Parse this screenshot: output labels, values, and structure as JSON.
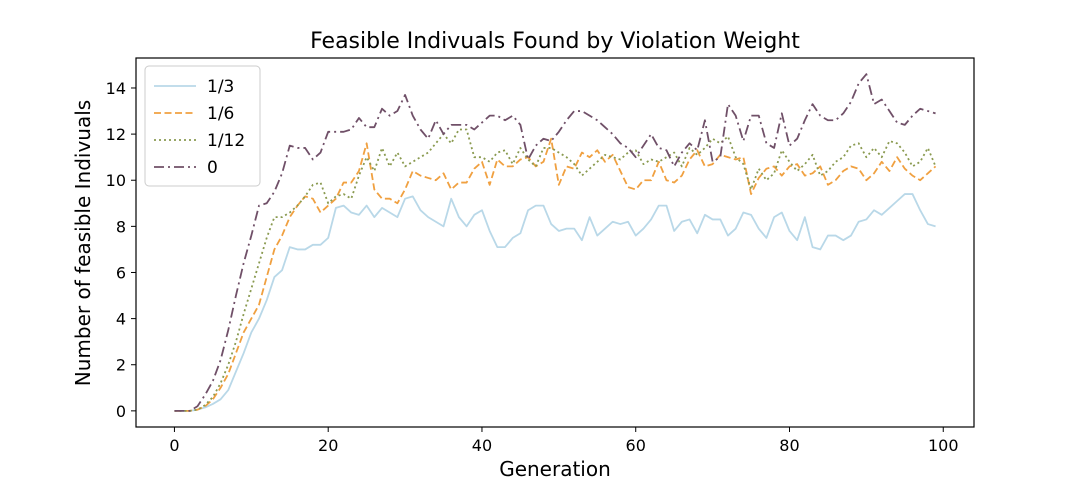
{
  "chart_data": {
    "type": "line",
    "title": "Feasible Indivuals Found by Violation Weight",
    "xlabel": "Generation",
    "ylabel": "Number of feasible Indivuals",
    "xlim": [
      -5,
      104
    ],
    "ylim": [
      -0.7,
      15.3
    ],
    "xticks": [
      0,
      20,
      40,
      60,
      80,
      100
    ],
    "yticks": [
      0,
      2,
      4,
      6,
      8,
      10,
      12,
      14
    ],
    "grid": false,
    "legend": "top-left",
    "x_start": 0,
    "series": [
      {
        "name": "1/3",
        "color": "#b9d8e8",
        "dash": "solid",
        "values": [
          0,
          0,
          0,
          0.05,
          0.15,
          0.3,
          0.5,
          0.9,
          1.7,
          2.5,
          3.4,
          4.0,
          4.8,
          5.8,
          6.1,
          7.1,
          7.0,
          7.0,
          7.2,
          7.2,
          7.5,
          8.8,
          8.9,
          8.6,
          8.5,
          8.9,
          8.4,
          8.8,
          8.6,
          8.4,
          9.2,
          9.3,
          8.7,
          8.4,
          8.2,
          8.0,
          9.2,
          8.4,
          8.0,
          8.5,
          8.7,
          7.8,
          7.1,
          7.1,
          7.5,
          7.7,
          8.7,
          8.9,
          8.9,
          8.1,
          7.8,
          7.9,
          7.9,
          7.4,
          8.4,
          7.6,
          7.9,
          8.2,
          8.1,
          8.2,
          7.6,
          7.9,
          8.3,
          8.9,
          8.9,
          7.8,
          8.2,
          8.3,
          7.7,
          8.5,
          8.3,
          8.3,
          7.6,
          7.9,
          8.6,
          8.5,
          7.9,
          7.5,
          8.4,
          8.6,
          7.8,
          7.4,
          8.4,
          7.1,
          7.0,
          7.6,
          7.6,
          7.4,
          7.6,
          8.2,
          8.3,
          8.7,
          8.5,
          8.8,
          9.1,
          9.4,
          9.4,
          8.7,
          8.1,
          8.0
        ]
      },
      {
        "name": "1/6",
        "color": "#f0a040",
        "dash": "dashed",
        "values": [
          0,
          0,
          0,
          0.05,
          0.2,
          0.5,
          1.0,
          1.6,
          2.5,
          3.4,
          4.0,
          4.6,
          5.8,
          7.0,
          7.6,
          8.4,
          8.9,
          9.3,
          9.2,
          8.6,
          8.9,
          9.2,
          9.9,
          9.9,
          10.4,
          11.6,
          9.6,
          9.2,
          9.2,
          9.0,
          9.6,
          10.4,
          10.2,
          10.1,
          10.0,
          10.3,
          9.6,
          9.9,
          9.9,
          10.5,
          10.8,
          9.8,
          10.9,
          10.6,
          10.6,
          10.9,
          11.0,
          10.6,
          10.8,
          11.8,
          9.8,
          10.6,
          10.5,
          11.2,
          11.0,
          11.3,
          10.8,
          11.1,
          10.4,
          9.7,
          9.6,
          10.0,
          10.0,
          10.8,
          10.0,
          9.9,
          10.2,
          10.9,
          11.3,
          10.6,
          10.7,
          11.1,
          11.0,
          10.9,
          11.0,
          9.4,
          10.1,
          10.5,
          10.6,
          10.2,
          10.6,
          10.7,
          10.2,
          10.3,
          10.6,
          9.8,
          10.0,
          10.4,
          10.6,
          10.5,
          10.0,
          10.3,
          10.8,
          10.4,
          11.0,
          10.5,
          10.2,
          10.0,
          10.3,
          10.6
        ]
      },
      {
        "name": "1/12",
        "color": "#8a9a50",
        "dash": "dotted",
        "values": [
          0,
          0,
          0,
          0.05,
          0.25,
          0.6,
          1.2,
          2.0,
          3.0,
          4.2,
          5.3,
          6.4,
          7.5,
          8.4,
          8.4,
          8.6,
          8.9,
          9.3,
          9.8,
          9.9,
          9.0,
          9.3,
          9.4,
          9.2,
          10.2,
          11.0,
          10.4,
          11.4,
          10.6,
          11.2,
          10.6,
          10.8,
          11.0,
          11.2,
          11.6,
          12.0,
          11.6,
          12.2,
          12.2,
          11.0,
          11.0,
          10.8,
          11.2,
          11.3,
          10.7,
          11.4,
          10.9,
          10.6,
          11.4,
          11.4,
          11.2,
          11.0,
          10.7,
          10.2,
          10.5,
          10.8,
          11.1,
          11.0,
          10.9,
          11.2,
          11.3,
          10.7,
          10.9,
          10.8,
          11.0,
          11.2,
          10.6,
          11.4,
          11.1,
          11.4,
          11.8,
          11.6,
          11.9,
          11.0,
          10.7,
          9.6,
          10.5,
          10.0,
          10.3,
          11.3,
          10.8,
          10.4,
          10.7,
          11.1,
          10.2,
          10.4,
          10.8,
          11.0,
          11.5,
          11.6,
          11.0,
          11.4,
          11.0,
          11.7,
          11.6,
          11.2,
          10.6,
          10.8,
          11.4,
          10.6
        ]
      },
      {
        "name": "0",
        "color": "#705068",
        "dash": "dashdot",
        "values": [
          0,
          0,
          0,
          0.2,
          0.7,
          1.3,
          2.2,
          3.5,
          5.0,
          6.4,
          7.6,
          8.9,
          9.0,
          9.5,
          10.3,
          11.5,
          11.4,
          11.4,
          10.9,
          11.2,
          12.1,
          12.1,
          12.1,
          12.2,
          12.7,
          12.3,
          12.3,
          13.1,
          12.8,
          13.0,
          13.7,
          12.8,
          12.2,
          11.8,
          12.6,
          12.0,
          12.4,
          12.4,
          12.4,
          12.2,
          12.5,
          12.8,
          12.8,
          12.6,
          12.8,
          12.4,
          10.9,
          11.5,
          11.8,
          11.7,
          12.1,
          12.6,
          13.0,
          13.0,
          12.8,
          12.6,
          12.3,
          12.0,
          11.6,
          11.4,
          11.0,
          11.5,
          12.0,
          11.4,
          11.3,
          10.6,
          11.2,
          11.6,
          11.3,
          12.6,
          10.8,
          11.0,
          13.3,
          12.8,
          11.7,
          12.8,
          12.8,
          11.6,
          11.4,
          12.9,
          11.5,
          11.8,
          12.6,
          13.3,
          12.8,
          12.6,
          12.6,
          12.9,
          13.4,
          14.2,
          14.6,
          13.3,
          13.5,
          13.0,
          12.5,
          12.4,
          12.8,
          13.1,
          13.0,
          12.9
        ]
      }
    ]
  }
}
